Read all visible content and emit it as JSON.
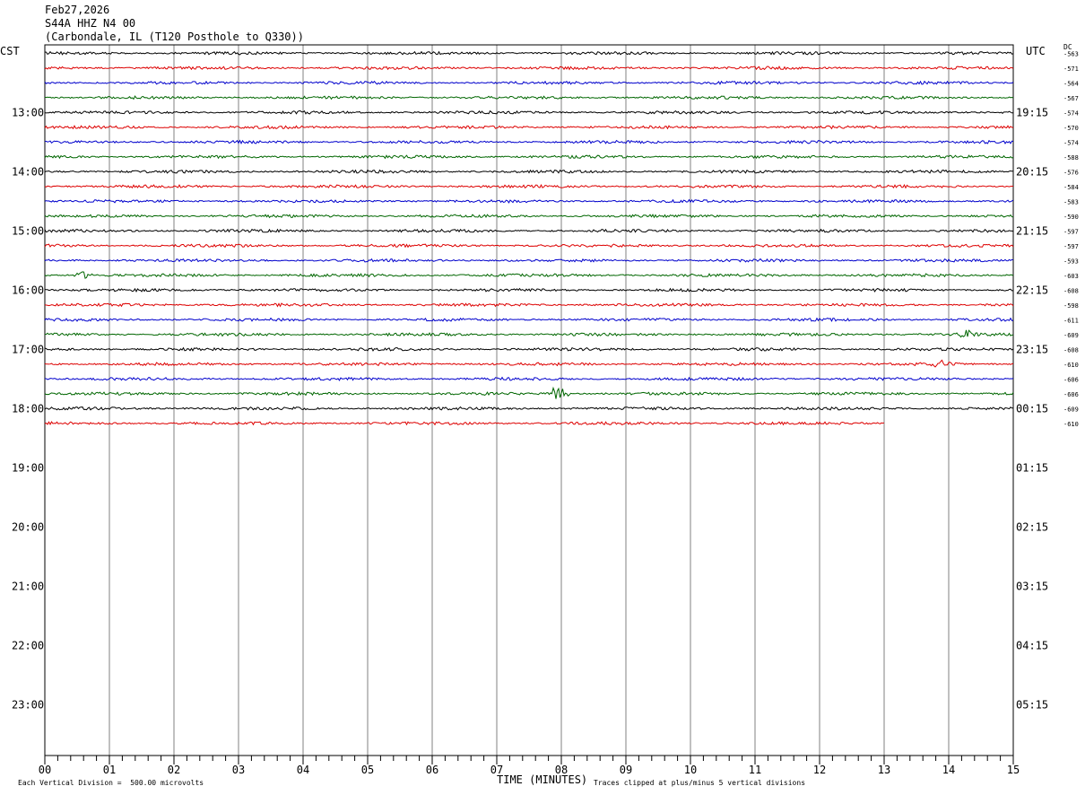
{
  "header": {
    "date": "Feb27,2026",
    "station": "S44A HHZ N4 00",
    "location": "(Carbondale, IL (T120 Posthole to Q330))"
  },
  "labels": {
    "left_timezone": "CST",
    "right_timezone": "UTC",
    "dc_label": "DC",
    "xlabel": "TIME (MINUTES)",
    "scale_note": "Each Vertical Division =  500.00 microvolts",
    "clip_note": "Traces clipped at plus/minus 5 vertical divisions"
  },
  "colors": {
    "trace_cycle": [
      "#000000",
      "#dd0000",
      "#0000cc",
      "#006600"
    ],
    "grid": "#808080",
    "frame": "#000000"
  },
  "chart_data": {
    "type": "line",
    "title": "",
    "xlim": [
      0,
      15
    ],
    "x_ticks": [
      "00",
      "01",
      "02",
      "03",
      "04",
      "05",
      "06",
      "07",
      "08",
      "09",
      "10",
      "11",
      "12",
      "13",
      "14",
      "15"
    ],
    "rows_total": 48,
    "minutes_per_row": 15,
    "left_hour_labels": [
      "13:00",
      "14:00",
      "15:00",
      "16:00",
      "17:00",
      "18:00",
      "19:00",
      "20:00",
      "21:00",
      "22:00",
      "23:00"
    ],
    "right_hour_labels": [
      "19:15",
      "20:15",
      "21:15",
      "22:15",
      "23:15",
      "00:15",
      "01:15",
      "02:15",
      "03:15",
      "04:15",
      "05:15"
    ],
    "dc_values": [
      -563,
      -571,
      -564,
      -567,
      -574,
      -570,
      -574,
      -588,
      -576,
      -584,
      -583,
      -590,
      -597,
      -597,
      -593,
      -603,
      -608,
      -598,
      -611,
      -609,
      -608,
      -610,
      -606,
      -606,
      -609,
      -610
    ],
    "last_row_end_minute": 13,
    "events": [
      {
        "row": 23,
        "minute": 7.95,
        "amplitude": "large"
      },
      {
        "row": 21,
        "minute": 13.9,
        "amplitude": "small"
      },
      {
        "row": 15,
        "minute": 0.6,
        "amplitude": "small"
      },
      {
        "row": 19,
        "minute": 14.3,
        "amplitude": "small"
      }
    ]
  }
}
